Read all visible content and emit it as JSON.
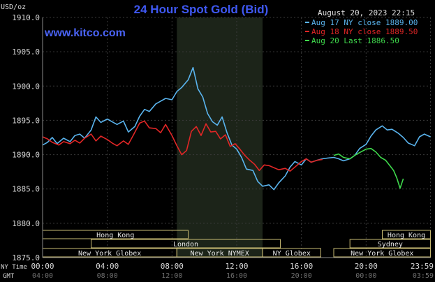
{
  "chart_data": {
    "type": "line",
    "title": "24 Hour Spot Gold (Bid)",
    "brand": "www.kitco.com",
    "timestamp": "August 20, 2023 22:15",
    "ylabel": "USD/oz",
    "ylim": [
      1875.0,
      1910.0
    ],
    "yticks": [
      "1875.0",
      "1880.0",
      "1885.0",
      "1890.0",
      "1895.0",
      "1900.0",
      "1905.0",
      "1910.0"
    ],
    "ytick_values": [
      1875,
      1880,
      1885,
      1890,
      1895,
      1900,
      1905,
      1910
    ],
    "xlim": [
      0,
      24
    ],
    "x_axis_label_top": "NY Time",
    "x_axis_label_bottom": "GMT",
    "xticks_ny": [
      "00:00",
      "04:00",
      "08:00",
      "12:00",
      "16:00",
      "20:00",
      "23:59"
    ],
    "xticks_gmt": [
      "04:00",
      "08:00",
      "12:00",
      "16:00",
      "20:00",
      "00:00",
      "03:59"
    ],
    "xtick_hours": [
      0,
      4,
      8,
      12,
      16,
      20,
      23.98
    ],
    "shaded_range": [
      8.3,
      13.6
    ],
    "legend_placement": "top-right",
    "series": [
      {
        "name": "Aug 17 NY close 1889.00",
        "color": "#5ab4ee",
        "x": [
          0,
          0.3,
          0.6,
          0.9,
          1.3,
          1.7,
          2.0,
          2.3,
          2.6,
          3.0,
          3.3,
          3.6,
          4.0,
          4.3,
          4.6,
          5.0,
          5.3,
          5.7,
          6.0,
          6.3,
          6.6,
          7.0,
          7.3,
          7.6,
          8.0,
          8.3,
          8.6,
          9.0,
          9.3,
          9.6,
          9.9,
          10.2,
          10.5,
          10.8,
          11.1,
          11.4,
          11.7,
          12.0,
          12.3,
          12.6,
          13.0,
          13.3,
          13.6,
          14.0,
          14.3,
          14.6,
          15.0,
          15.3,
          15.6,
          16.0,
          16.3,
          16.6,
          17.0,
          17.3,
          17.6,
          18.0,
          18.3,
          18.6,
          19.0,
          19.3,
          19.6,
          20.0,
          20.3,
          20.6,
          21.0,
          21.3,
          21.6,
          22.0,
          22.3,
          22.6,
          23.0,
          23.3,
          23.6,
          23.98
        ],
        "values": [
          1891.4,
          1891.8,
          1892.5,
          1891.6,
          1892.4,
          1891.9,
          1892.8,
          1893.0,
          1892.4,
          1893.6,
          1895.5,
          1894.7,
          1895.2,
          1894.8,
          1894.4,
          1894.9,
          1893.3,
          1894.1,
          1895.6,
          1896.6,
          1896.3,
          1897.4,
          1897.8,
          1898.2,
          1898.0,
          1899.2,
          1899.8,
          1900.9,
          1902.7,
          1899.6,
          1898.4,
          1896.0,
          1894.8,
          1894.3,
          1895.5,
          1893.2,
          1891.4,
          1890.8,
          1889.6,
          1887.9,
          1887.7,
          1886.1,
          1885.4,
          1885.6,
          1884.9,
          1885.9,
          1886.9,
          1888.2,
          1889.0,
          1888.5,
          1889.4,
          1888.9,
          1889.2,
          1889.4,
          1889.5,
          1889.6,
          1889.4,
          1889.1,
          1889.4,
          1889.9,
          1890.9,
          1891.5,
          1892.7,
          1893.6,
          1894.2,
          1893.6,
          1893.7,
          1893.1,
          1892.5,
          1891.7,
          1891.3,
          1892.6,
          1893.0,
          1892.6
        ]
      },
      {
        "name": "Aug 18 NY close 1889.50",
        "color": "#e12626",
        "x": [
          0,
          0.3,
          0.6,
          1.0,
          1.3,
          1.7,
          2.0,
          2.3,
          2.6,
          3.0,
          3.3,
          3.6,
          4.0,
          4.3,
          4.6,
          5.0,
          5.3,
          5.6,
          6.0,
          6.3,
          6.6,
          7.0,
          7.3,
          7.6,
          8.0,
          8.3,
          8.6,
          8.9,
          9.2,
          9.5,
          9.8,
          10.1,
          10.4,
          10.7,
          11.0,
          11.3,
          11.6,
          11.9,
          12.2,
          12.5,
          12.8,
          13.1,
          13.4,
          13.7,
          14.0,
          14.3,
          14.6,
          15.0,
          15.3,
          15.6,
          16.0,
          16.3,
          16.6,
          17.0,
          17.3
        ],
        "values": [
          1892.6,
          1892.3,
          1891.8,
          1891.4,
          1891.9,
          1891.6,
          1892.1,
          1891.7,
          1892.4,
          1893.0,
          1892.0,
          1892.7,
          1892.2,
          1891.7,
          1891.3,
          1892.0,
          1891.5,
          1892.8,
          1894.6,
          1894.9,
          1893.9,
          1893.8,
          1893.2,
          1894.4,
          1892.8,
          1891.3,
          1890.0,
          1890.6,
          1893.4,
          1894.1,
          1892.8,
          1894.5,
          1893.3,
          1893.4,
          1892.3,
          1892.9,
          1891.2,
          1891.6,
          1890.8,
          1889.9,
          1889.2,
          1888.6,
          1887.7,
          1888.5,
          1888.4,
          1888.1,
          1887.8,
          1888.0,
          1887.6,
          1888.2,
          1889.0,
          1889.4,
          1888.9,
          1889.2,
          1889.3
        ]
      },
      {
        "name": "Aug 20 Last 1886.50",
        "color": "#3fd94c",
        "x": [
          18.0,
          18.3,
          18.6,
          19.0,
          19.3,
          19.6,
          20.0,
          20.3,
          20.6,
          20.9,
          21.2,
          21.5,
          21.7,
          21.9,
          22.1,
          22.3
        ],
        "values": [
          1889.9,
          1890.1,
          1889.6,
          1889.4,
          1889.9,
          1890.3,
          1890.8,
          1890.9,
          1890.4,
          1889.6,
          1889.2,
          1888.3,
          1887.7,
          1886.6,
          1885.1,
          1886.5
        ]
      }
    ],
    "sessions": [
      {
        "label": "Hong Kong",
        "start": 0,
        "end": 9
      },
      {
        "label": "London",
        "start": 3,
        "end": 14.7
      },
      {
        "label": "New York Globex",
        "start": 0,
        "end": 8.3
      },
      {
        "label": "New York NYMEX",
        "start": 8.3,
        "end": 13.6
      },
      {
        "label": "NY Globex",
        "start": 13.6,
        "end": 17.2
      },
      {
        "label": "Hong Kong",
        "start": 21,
        "end": 23.98
      },
      {
        "label": "Sydney",
        "start": 19,
        "end": 23.98
      },
      {
        "label": "New York Globex",
        "start": 18,
        "end": 23.98
      }
    ]
  }
}
